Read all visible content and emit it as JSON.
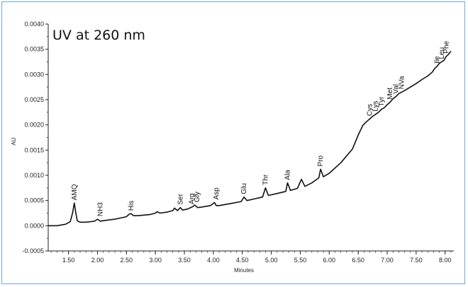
{
  "chart_data": {
    "type": "line",
    "title": "UV at 260 nm",
    "xlabel": "Minutes",
    "ylabel": "AU",
    "xlim": [
      1.15,
      8.15
    ],
    "ylim": [
      -0.0005,
      0.004
    ],
    "x_ticks": [
      1.5,
      2.0,
      2.5,
      3.0,
      3.5,
      4.0,
      4.5,
      5.0,
      5.5,
      6.0,
      6.5,
      7.0,
      7.5,
      8.0
    ],
    "x_tick_labels": [
      "1.50",
      "2.00",
      "2.50",
      "3.00",
      "3.50",
      "4.00",
      "4.50",
      "5.00",
      "5.50",
      "6.00",
      "6.50",
      "7.00",
      "7.50",
      "8.00"
    ],
    "y_ticks": [
      -0.0005,
      0.0,
      0.0005,
      0.001,
      0.0015,
      0.002,
      0.0025,
      0.003,
      0.0035,
      0.004
    ],
    "y_tick_labels": [
      "-0.0005",
      "0.0000",
      "0.0005",
      "0.0010",
      "0.0015",
      "0.0020",
      "0.0025",
      "0.0030",
      "0.0035",
      "0.0040"
    ],
    "grid": false,
    "series": [
      {
        "values_x": [
          1.15,
          1.3,
          1.45,
          1.53,
          1.57,
          1.6,
          1.62,
          1.65,
          1.7,
          1.8,
          1.95,
          2.0,
          2.05,
          2.1,
          2.3,
          2.5,
          2.55,
          2.58,
          2.62,
          2.7,
          2.9,
          3.0,
          3.03,
          3.08,
          3.2,
          3.3,
          3.33,
          3.38,
          3.43,
          3.47,
          3.55,
          3.63,
          3.68,
          3.73,
          3.8,
          3.95,
          4.02,
          4.05,
          4.1,
          4.3,
          4.48,
          4.53,
          4.58,
          4.7,
          4.85,
          4.9,
          4.95,
          5.1,
          5.25,
          5.28,
          5.33,
          5.45,
          5.52,
          5.58,
          5.7,
          5.82,
          5.85,
          5.9,
          6.0,
          6.2,
          6.4,
          6.5,
          6.58,
          6.65,
          6.7,
          6.75,
          6.8,
          6.85,
          6.9,
          6.95,
          7.0,
          7.05,
          7.1,
          7.15,
          7.2,
          7.25,
          7.3,
          7.4,
          7.5,
          7.6,
          7.7,
          7.78,
          7.82,
          7.86,
          7.9,
          7.94,
          7.98,
          8.02,
          8.06,
          8.1
        ],
        "values_y": [
          0.0,
          0.0,
          3e-05,
          8e-05,
          0.00025,
          0.00045,
          0.0003,
          0.0001,
          7e-05,
          7e-05,
          9e-05,
          0.00013,
          9e-05,
          0.0001,
          0.00013,
          0.00018,
          0.00023,
          0.00024,
          0.0002,
          0.0002,
          0.00022,
          0.00025,
          0.00028,
          0.00025,
          0.00027,
          0.0003,
          0.00035,
          0.0003,
          0.00036,
          0.00031,
          0.00033,
          0.00037,
          0.00041,
          0.00036,
          0.00037,
          0.0004,
          0.00046,
          0.0004,
          0.0004,
          0.00044,
          0.00048,
          0.00057,
          0.0005,
          0.00053,
          0.00057,
          0.00075,
          0.0006,
          0.00064,
          0.00068,
          0.00085,
          0.0007,
          0.00074,
          0.00092,
          0.00078,
          0.00085,
          0.00095,
          0.00112,
          0.00097,
          0.00104,
          0.00125,
          0.00152,
          0.0018,
          0.00199,
          0.00207,
          0.00212,
          0.00217,
          0.00221,
          0.00225,
          0.00231,
          0.00234,
          0.0024,
          0.00245,
          0.00252,
          0.00256,
          0.00262,
          0.00265,
          0.00268,
          0.00275,
          0.00282,
          0.0029,
          0.00297,
          0.00305,
          0.00312,
          0.00316,
          0.00322,
          0.00325,
          0.00328,
          0.00336,
          0.0034,
          0.00346
        ]
      }
    ],
    "annotations": [
      {
        "text": "AMQ",
        "x": 1.6,
        "y": 0.00045
      },
      {
        "text": "NH3",
        "x": 2.05,
        "y": 0.00013
      },
      {
        "text": "His",
        "x": 2.58,
        "y": 0.00024
      },
      {
        "text": "Ser",
        "x": 3.43,
        "y": 0.00036
      },
      {
        "text": "Arg",
        "x": 3.63,
        "y": 0.00037
      },
      {
        "text": "Gly",
        "x": 3.72,
        "y": 0.00041
      },
      {
        "text": "Asp",
        "x": 4.05,
        "y": 0.00046
      },
      {
        "text": "Glu",
        "x": 4.53,
        "y": 0.00057
      },
      {
        "text": "Thr",
        "x": 4.9,
        "y": 0.00075
      },
      {
        "text": "Ala",
        "x": 5.28,
        "y": 0.00085
      },
      {
        "text": "Pro",
        "x": 5.85,
        "y": 0.00112
      },
      {
        "text": "Cys",
        "x": 6.7,
        "y": 0.00212
      },
      {
        "text": "Lys",
        "x": 6.8,
        "y": 0.00221
      },
      {
        "text": "Tyr",
        "x": 6.9,
        "y": 0.00231
      },
      {
        "text": "Met",
        "x": 7.05,
        "y": 0.00245
      },
      {
        "text": "Val",
        "x": 7.15,
        "y": 0.00256
      },
      {
        "text": "NVa",
        "x": 7.25,
        "y": 0.00265
      },
      {
        "text": "Ile",
        "x": 7.86,
        "y": 0.00316
      },
      {
        "text": "Leu",
        "x": 7.94,
        "y": 0.00325
      },
      {
        "text": "Phe",
        "x": 8.02,
        "y": 0.00336
      }
    ]
  },
  "colors": {
    "frame_border": "#6fa8d8",
    "trace": "#111111",
    "axis": "#222222"
  }
}
